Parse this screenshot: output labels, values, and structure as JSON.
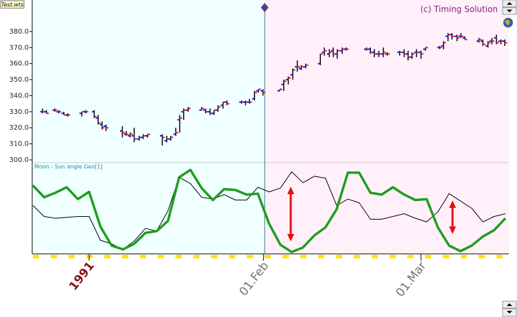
{
  "file_label": "Test.wts",
  "copyright": "(c) Timing Solution",
  "chart_data": [
    {
      "type": "ohlc",
      "xlim": [
        -10,
        74.6
      ],
      "ylim": [
        298.3,
        399.6
      ],
      "yticks": [
        {
          "value": 300,
          "label": "300.0"
        },
        {
          "value": 310,
          "label": "310.0"
        },
        {
          "value": 320,
          "label": "320.0"
        },
        {
          "value": 330,
          "label": "330.0"
        },
        {
          "value": 340,
          "label": "340.0"
        },
        {
          "value": 350,
          "label": "350.0"
        },
        {
          "value": 360,
          "label": "360.0"
        },
        {
          "value": 370,
          "label": "370.0"
        },
        {
          "value": 380,
          "label": "380.0"
        }
      ],
      "colors": {
        "bar": "#000000",
        "open": "#1a1ae6",
        "close": "#e61a1a"
      },
      "x": [
        -8.3,
        -7.6,
        -6.1,
        -5.4,
        -4.5,
        -3.8,
        -1.3,
        -0.6,
        0.9,
        1.6,
        2.3,
        3.0,
        5.9,
        6.6,
        7.3,
        8.0,
        8.9,
        9.6,
        10.4,
        13.0,
        13.8,
        14.5,
        15.4,
        16.1,
        16.8,
        17.6,
        20.0,
        20.7,
        21.5,
        22.2,
        22.9,
        23.8,
        24.5,
        27.1,
        27.8,
        28.5,
        29.4,
        30.1,
        30.9,
        33.9,
        34.6,
        35.4,
        36.2,
        37.0,
        37.7,
        38.5,
        41.1,
        41.8,
        42.7,
        43.4,
        44.1,
        45.0,
        45.7,
        49.3,
        50.0,
        50.7,
        51.5,
        52.3,
        53.0,
        55.2,
        56.0,
        56.7,
        57.4,
        58.2,
        59.0,
        59.8,
        62.3,
        63.0,
        63.8,
        64.5,
        65.4,
        66.1,
        66.8,
        69.3,
        70.0,
        70.9,
        71.6,
        72.4,
        73.2,
        73.9
      ],
      "open": [
        330,
        330,
        331,
        330,
        329,
        328,
        329,
        330,
        330,
        326,
        322,
        321,
        318,
        316,
        315,
        315,
        313,
        314,
        315,
        315,
        312,
        313,
        316,
        325,
        330,
        331,
        331,
        331,
        330,
        329,
        331,
        334,
        336,
        336,
        336,
        336,
        338,
        343,
        343,
        343,
        347,
        350,
        353,
        358,
        357,
        358,
        360,
        367,
        366,
        368,
        366,
        368,
        369,
        369,
        369,
        367,
        366,
        366,
        366,
        367,
        367,
        366,
        364,
        367,
        367,
        369,
        370,
        371,
        377,
        378,
        377,
        377,
        376,
        374,
        374,
        371,
        374,
        376,
        374,
        374
      ],
      "high": [
        332,
        331,
        332,
        331,
        330,
        329,
        330,
        331,
        331,
        328,
        324,
        322,
        321,
        318,
        317,
        320,
        315,
        316,
        316,
        316,
        315,
        315,
        320,
        328,
        332,
        333,
        333,
        332,
        332,
        331,
        334,
        336,
        337,
        337,
        337,
        338,
        343,
        344,
        344,
        344,
        350,
        352,
        357,
        362,
        359,
        360,
        366,
        370,
        369,
        370,
        369,
        370,
        370,
        370,
        370,
        369,
        368,
        370,
        367,
        368,
        369,
        368,
        367,
        369,
        368,
        370,
        371,
        374,
        379,
        379,
        378,
        379,
        377,
        376,
        375,
        374,
        376,
        378,
        375,
        375
      ],
      "low": [
        329,
        329,
        330,
        329,
        328,
        327,
        327,
        329,
        326,
        322,
        319,
        318,
        314,
        315,
        314,
        311,
        312,
        313,
        314,
        309,
        311,
        312,
        315,
        317,
        325,
        330,
        331,
        329,
        328,
        328,
        330,
        332,
        334,
        335,
        334,
        335,
        337,
        342,
        340,
        343,
        343,
        347,
        350,
        355,
        356,
        357,
        359,
        365,
        364,
        364,
        363,
        366,
        368,
        368,
        366,
        364,
        364,
        364,
        365,
        365,
        364,
        362,
        363,
        364,
        363,
        368,
        369,
        369,
        374,
        375,
        374,
        376,
        375,
        373,
        371,
        370,
        372,
        372,
        372,
        371
      ],
      "close": [
        330,
        329,
        331,
        330,
        328,
        328,
        330,
        330,
        327,
        323,
        320,
        320,
        317,
        316,
        316,
        313,
        314,
        315,
        316,
        314,
        313,
        314,
        317,
        326,
        331,
        332,
        332,
        330,
        329,
        331,
        333,
        336,
        335,
        336,
        336,
        336,
        342,
        344,
        342,
        344,
        349,
        351,
        356,
        358,
        358,
        359,
        366,
        368,
        367,
        366,
        368,
        369,
        369,
        369,
        367,
        366,
        366,
        367,
        366,
        367,
        366,
        364,
        366,
        367,
        366,
        370,
        370,
        373,
        378,
        377,
        376,
        377,
        375,
        375,
        372,
        373,
        374,
        373,
        374,
        373
      ]
    },
    {
      "type": "line",
      "title": "Moon - Sun angle Geo[1]",
      "xlim": [
        -10,
        74.6
      ],
      "ylim": [
        0,
        100
      ],
      "xticks": [
        {
          "value": 0,
          "label": "1991"
        },
        {
          "value": 31,
          "label": "01.Feb"
        },
        {
          "value": 59,
          "label": "01.Mar"
        }
      ],
      "xtick_colors": [
        "#8b1010",
        "#707070",
        "#707070"
      ],
      "x": [
        -10,
        -8,
        -6,
        -4,
        -2,
        0,
        2,
        4,
        6,
        8,
        10,
        12,
        14,
        16,
        18,
        20,
        22,
        24,
        26,
        28,
        30,
        32,
        34,
        36,
        38,
        40,
        42,
        44,
        46,
        48,
        50,
        52,
        54,
        56,
        58,
        60,
        62,
        64,
        66,
        68,
        70,
        72,
        74
      ],
      "series": [
        {
          "color": "#1e9e1e",
          "width": 3.5,
          "values": [
            75,
            62,
            67,
            73,
            60,
            68,
            30,
            9,
            5,
            11,
            23,
            25,
            36,
            84,
            92,
            72,
            59,
            71,
            70,
            65,
            66,
            33,
            10,
            2,
            7,
            20,
            29,
            49,
            89,
            89,
            67,
            65,
            73,
            65,
            59,
            60,
            29,
            9,
            3,
            9,
            19,
            26,
            39
          ]
        },
        {
          "color": "#000000",
          "width": 1,
          "values": [
            53,
            41,
            39,
            40,
            41,
            41,
            15,
            11,
            5,
            14,
            28,
            25,
            47,
            84,
            77,
            62,
            60,
            65,
            59,
            59,
            73,
            68,
            72,
            90,
            78,
            85,
            83,
            53,
            60,
            56,
            38,
            38,
            41,
            44,
            39,
            35,
            46,
            66,
            58,
            50,
            35,
            41,
            44
          ]
        }
      ]
    }
  ]
}
